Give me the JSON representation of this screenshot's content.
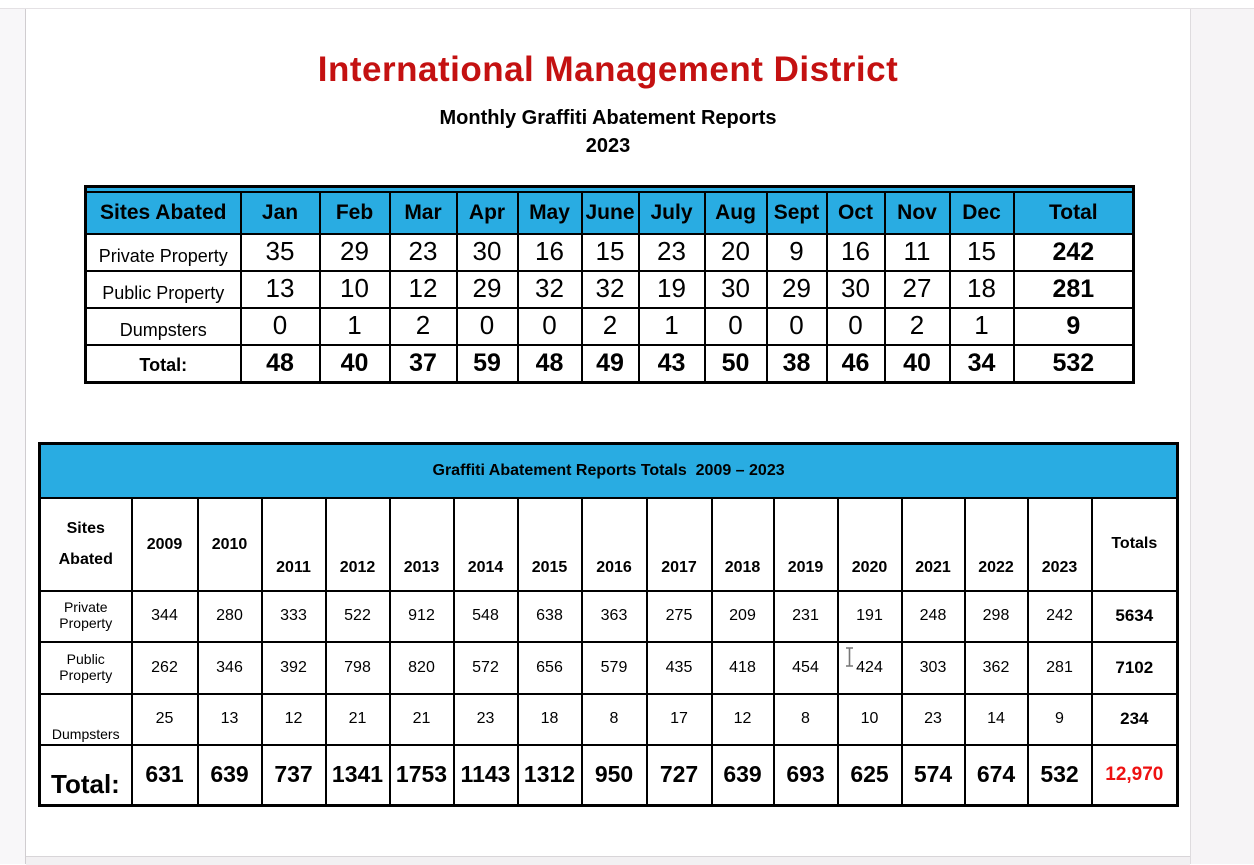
{
  "colors": {
    "title_red": "#C41111",
    "header_blue": "#29ACE2",
    "total_red": "#EE1111"
  },
  "header": {
    "title": "International Management District",
    "subtitle": "Monthly Graffiti Abatement Reports",
    "year": "2023"
  },
  "monthly_table": {
    "corner_header": "Sites Abated",
    "months": [
      "Jan",
      "Feb",
      "Mar",
      "Apr",
      "May",
      "June",
      "July",
      "Aug",
      "Sept",
      "Oct",
      "Nov",
      "Dec"
    ],
    "total_header": "Total",
    "rows": [
      {
        "label": "Private Property",
        "values": [
          35,
          29,
          23,
          30,
          16,
          15,
          23,
          20,
          9,
          16,
          11,
          15
        ],
        "total": 242
      },
      {
        "label": "Public Property",
        "values": [
          13,
          10,
          12,
          29,
          32,
          32,
          19,
          30,
          29,
          30,
          27,
          18
        ],
        "total": 281
      },
      {
        "label": "Dumpsters",
        "values": [
          0,
          1,
          2,
          0,
          0,
          2,
          1,
          0,
          0,
          0,
          2,
          1
        ],
        "total": 9
      }
    ],
    "total_row": {
      "label": "Total:",
      "values": [
        48,
        40,
        37,
        59,
        48,
        49,
        43,
        50,
        38,
        46,
        40,
        34
      ],
      "total": 532
    }
  },
  "totals_table": {
    "title": "Graffiti Abatement Reports Totals  2009 – 2023",
    "corner_line1": "Sites",
    "corner_line2": "Abated",
    "years": [
      "2009",
      "2010",
      "2011",
      "2012",
      "2013",
      "2014",
      "2015",
      "2016",
      "2017",
      "2018",
      "2019",
      "2020",
      "2021",
      "2022",
      "2023"
    ],
    "totals_header": "Totals",
    "rows": [
      {
        "label": "Private Property",
        "values": [
          344,
          280,
          333,
          522,
          912,
          548,
          638,
          363,
          275,
          209,
          231,
          191,
          248,
          298,
          242
        ],
        "total": 5634
      },
      {
        "label": "Public Property",
        "values": [
          262,
          346,
          392,
          798,
          820,
          572,
          656,
          579,
          435,
          418,
          454,
          424,
          303,
          362,
          281
        ],
        "total": 7102
      },
      {
        "label": "Dumpsters",
        "values": [
          25,
          13,
          12,
          21,
          21,
          23,
          18,
          8,
          17,
          12,
          8,
          10,
          23,
          14,
          9
        ],
        "total": 234
      }
    ],
    "total_row": {
      "label": "Total:",
      "values": [
        631,
        639,
        737,
        1341,
        1753,
        1143,
        1312,
        950,
        727,
        639,
        693,
        625,
        574,
        674,
        532
      ],
      "grand_total": "12,970"
    }
  }
}
